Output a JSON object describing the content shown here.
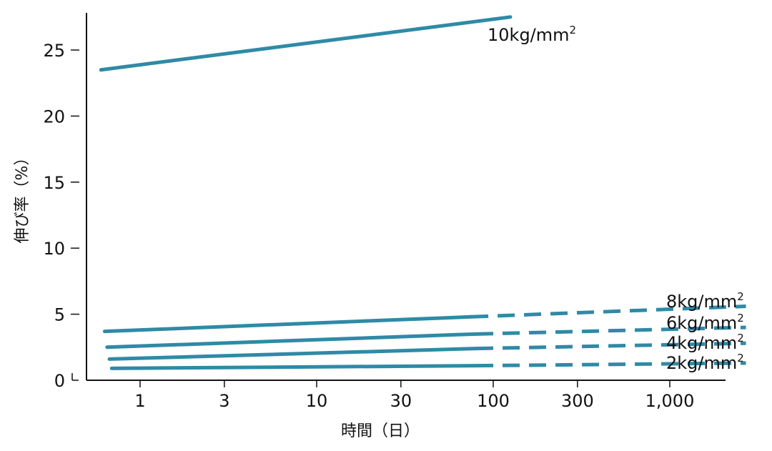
{
  "chart_data": {
    "type": "line",
    "xlabel": "時間（日）",
    "ylabel": "伸び率（%）",
    "x_scale": "log",
    "xlim": [
      0.55,
      3300
    ],
    "ylim": [
      0,
      28
    ],
    "x_ticks": [
      {
        "value": 1,
        "label": "1"
      },
      {
        "value": 3,
        "label": "3"
      },
      {
        "value": 10,
        "label": "10"
      },
      {
        "value": 30,
        "label": "30"
      },
      {
        "value": 100,
        "label": "100"
      },
      {
        "value": 300,
        "label": "300"
      },
      {
        "value": 1000,
        "label": "1,000"
      }
    ],
    "y_ticks": [
      {
        "value": 0,
        "label": "0"
      },
      {
        "value": 5,
        "label": "5"
      },
      {
        "value": 10,
        "label": "10"
      },
      {
        "value": 15,
        "label": "15"
      },
      {
        "value": 20,
        "label": "20"
      },
      {
        "value": 25,
        "label": "25"
      }
    ],
    "grid": false,
    "color": "#2f8aa6",
    "series": [
      {
        "name": "10kg/mm",
        "name_sup": "2",
        "solid": [
          [
            0.6,
            23.5
          ],
          [
            125,
            27.5
          ]
        ],
        "dashed": []
      },
      {
        "name": "8kg/mm",
        "name_sup": "2",
        "solid": [
          [
            0.63,
            3.7
          ],
          [
            75,
            4.8
          ]
        ],
        "dashed": [
          [
            75,
            4.8
          ],
          [
            2700,
            5.6
          ]
        ]
      },
      {
        "name": "6kg/mm",
        "name_sup": "2",
        "solid": [
          [
            0.65,
            2.5
          ],
          [
            80,
            3.5
          ]
        ],
        "dashed": [
          [
            80,
            3.5
          ],
          [
            2700,
            4.0
          ]
        ]
      },
      {
        "name": "4kg/mm",
        "name_sup": "2",
        "solid": [
          [
            0.67,
            1.6
          ],
          [
            80,
            2.4
          ]
        ],
        "dashed": [
          [
            80,
            2.4
          ],
          [
            2700,
            2.8
          ]
        ]
      },
      {
        "name": "2kg/mm",
        "name_sup": "2",
        "solid": [
          [
            0.69,
            0.9
          ],
          [
            80,
            1.1
          ]
        ],
        "dashed": [
          [
            80,
            1.1
          ],
          [
            2700,
            1.3
          ]
        ]
      }
    ]
  }
}
